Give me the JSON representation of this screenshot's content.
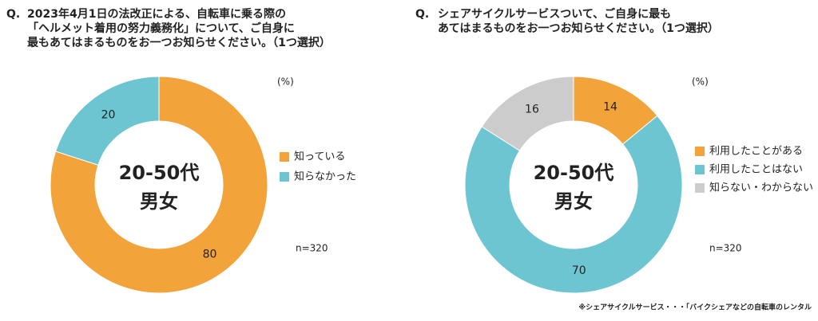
{
  "chart_data": [
    {
      "type": "donut",
      "question_prefix": "Q.",
      "title": [
        "2023年4月1日の法改正による、自転車に乗る際の",
        "「ヘルメット着用の努力義務化」について、ご自身に",
        "最もあてはまるものをお一つお知らせください。（1つ選択）"
      ],
      "center_text": [
        "20-50代",
        "男女"
      ],
      "unit_label": "(%)",
      "note": "n=320",
      "categories": [
        "知っている",
        "知らなかった"
      ],
      "values": [
        80,
        20
      ],
      "colors": [
        "#f2a33a",
        "#6cc5d1"
      ]
    },
    {
      "type": "donut",
      "question_prefix": "Q.",
      "title": [
        "シェアサイクルサービスついて、ご自身に最も",
        "あてはまるものをお一つお知らせください。（1つ選択）"
      ],
      "center_text": [
        "20-50代",
        "男女"
      ],
      "unit_label": "(%)",
      "note": "n=320",
      "categories": [
        "利用したことがある",
        "利用したことはない",
        "知らない・わからない"
      ],
      "values": [
        14,
        70,
        16
      ],
      "colors": [
        "#f2a33a",
        "#6cc5d1",
        "#cccccc"
      ]
    }
  ],
  "footnote": "※シェアサイクルサービス・・・「バイクシェアなどの自転車のレンタル"
}
